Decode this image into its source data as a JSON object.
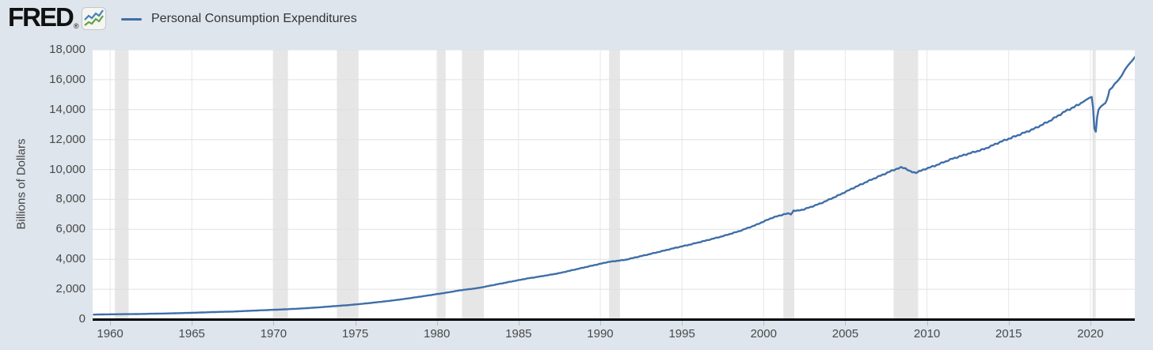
{
  "colors": {
    "page_background": "#dee5ec",
    "plot_background": "#ffffff",
    "horizontal_grid_line": "#e0e0e0",
    "vertical_grid_line": "#e7e7e7",
    "recession_band": "#e6e6e6",
    "series_line": "#3f6ea7",
    "axis_line": "#000000",
    "tick_mark": "#aebfd0",
    "tick_label": "#494949",
    "legend_text": "#333333",
    "logo_icon_line_blue": "#4a80b8",
    "logo_icon_line_green": "#61a544"
  },
  "header": {
    "logo_text": "FRED",
    "registered_mark": "®",
    "logo_icon": "fred-mini-chart-icon",
    "legend": {
      "label": "Personal Consumption Expenditures"
    }
  },
  "chart_data": {
    "type": "line",
    "title": "Personal Consumption Expenditures",
    "xlabel": "",
    "ylabel": "Billions of Dollars",
    "legend_position": "top-left",
    "grid": true,
    "x_domain": [
      1958.93,
      2022.72
    ],
    "y_domain": [
      0,
      18000
    ],
    "x_ticks": [
      1960,
      1965,
      1970,
      1975,
      1980,
      1985,
      1990,
      1995,
      2000,
      2005,
      2010,
      2015,
      2020
    ],
    "y_ticks": [
      0,
      2000,
      4000,
      6000,
      8000,
      10000,
      12000,
      14000,
      16000,
      18000
    ],
    "recession_bands": [
      [
        1960.29,
        1961.13
      ],
      [
        1969.96,
        1970.88
      ],
      [
        1973.88,
        1975.21
      ],
      [
        1980.04,
        1980.54
      ],
      [
        1981.54,
        1982.88
      ],
      [
        1990.54,
        1991.21
      ],
      [
        2001.21,
        2001.88
      ],
      [
        2007.96,
        2009.46
      ],
      [
        2020.13,
        2020.33
      ]
    ],
    "series": [
      {
        "name": "Personal Consumption Expenditures",
        "units": "Billions of Dollars",
        "points": [
          [
            1959.0,
            306
          ],
          [
            1959.5,
            318
          ],
          [
            1960.5,
            332
          ],
          [
            1961.5,
            342
          ],
          [
            1962.5,
            363
          ],
          [
            1963.5,
            383
          ],
          [
            1964.5,
            412
          ],
          [
            1965.5,
            444
          ],
          [
            1966.5,
            481
          ],
          [
            1967.5,
            509
          ],
          [
            1968.5,
            559
          ],
          [
            1969.5,
            604
          ],
          [
            1970.5,
            648
          ],
          [
            1971.5,
            702
          ],
          [
            1972.5,
            770
          ],
          [
            1973.5,
            852
          ],
          [
            1974.5,
            933
          ],
          [
            1975.5,
            1034
          ],
          [
            1976.5,
            1151
          ],
          [
            1977.5,
            1278
          ],
          [
            1978.5,
            1428
          ],
          [
            1979.5,
            1592
          ],
          [
            1980.5,
            1757
          ],
          [
            1981.5,
            1941
          ],
          [
            1982.5,
            2077
          ],
          [
            1983.5,
            2290
          ],
          [
            1984.5,
            2503
          ],
          [
            1985.5,
            2712
          ],
          [
            1986.5,
            2886
          ],
          [
            1987.5,
            3076
          ],
          [
            1988.5,
            3330
          ],
          [
            1989.5,
            3577
          ],
          [
            1990.5,
            3825
          ],
          [
            1991.5,
            3960
          ],
          [
            1992.5,
            4215
          ],
          [
            1993.5,
            4471
          ],
          [
            1994.5,
            4741
          ],
          [
            1995.5,
            4987
          ],
          [
            1996.5,
            5262
          ],
          [
            1997.5,
            5547
          ],
          [
            1998.5,
            5879
          ],
          [
            1999.5,
            6282
          ],
          [
            2000.5,
            6767
          ],
          [
            2001.3,
            7030
          ],
          [
            2001.62,
            7060
          ],
          [
            2001.71,
            6980
          ],
          [
            2001.8,
            7270
          ],
          [
            2002.0,
            7230
          ],
          [
            2002.5,
            7349
          ],
          [
            2003.5,
            7740
          ],
          [
            2004.5,
            8232
          ],
          [
            2005.5,
            8769
          ],
          [
            2006.5,
            9277
          ],
          [
            2007.5,
            9750
          ],
          [
            2008.0,
            9990
          ],
          [
            2008.45,
            10140
          ],
          [
            2008.7,
            10080
          ],
          [
            2008.95,
            9870
          ],
          [
            2009.15,
            9820
          ],
          [
            2009.3,
            9790
          ],
          [
            2009.6,
            9900
          ],
          [
            2009.9,
            10040
          ],
          [
            2010.5,
            10260
          ],
          [
            2011.5,
            10699
          ],
          [
            2012.5,
            11047
          ],
          [
            2013.5,
            11364
          ],
          [
            2014.5,
            11847
          ],
          [
            2015.5,
            12263
          ],
          [
            2016.5,
            12693
          ],
          [
            2017.5,
            13240
          ],
          [
            2018.5,
            13913
          ],
          [
            2019.1,
            14230
          ],
          [
            2019.5,
            14480
          ],
          [
            2019.95,
            14800
          ],
          [
            2020.12,
            14860
          ],
          [
            2020.2,
            13600
          ],
          [
            2020.29,
            12030
          ],
          [
            2020.37,
            12950
          ],
          [
            2020.45,
            13900
          ],
          [
            2020.6,
            14160
          ],
          [
            2020.8,
            14350
          ],
          [
            2020.95,
            14460
          ],
          [
            2021.1,
            14950
          ],
          [
            2021.2,
            15480
          ],
          [
            2021.28,
            15350
          ],
          [
            2021.35,
            15500
          ],
          [
            2021.5,
            15740
          ],
          [
            2021.7,
            15950
          ],
          [
            2021.95,
            16320
          ],
          [
            2022.1,
            16650
          ],
          [
            2022.3,
            16950
          ],
          [
            2022.5,
            17200
          ],
          [
            2022.65,
            17400
          ],
          [
            2022.75,
            17540
          ]
        ]
      }
    ]
  }
}
